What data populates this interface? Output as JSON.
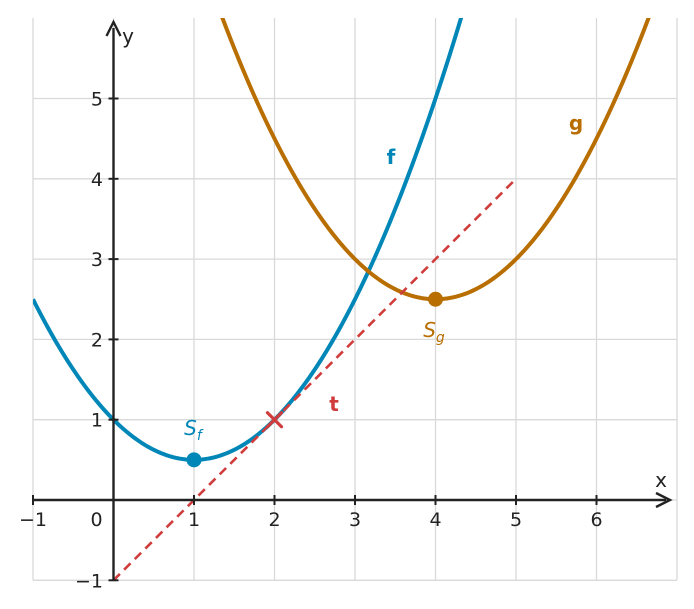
{
  "chart_data": {
    "type": "line",
    "xlabel": "x",
    "ylabel": "y",
    "xlim": [
      -1,
      7
    ],
    "ylim": [
      -1,
      6
    ],
    "grid": true,
    "x_ticks": [
      "−1",
      "0",
      "1",
      "2",
      "3",
      "4",
      "5",
      "6"
    ],
    "y_ticks": [
      "−1",
      "1",
      "2",
      "3",
      "4",
      "5"
    ],
    "colors": {
      "f": "#0087b8",
      "g": "#b86e00",
      "t": "#d03c3c",
      "grid": "#d9d9d9",
      "axis": "#222222"
    },
    "series": [
      {
        "name": "f",
        "kind": "parabola",
        "vertex": [
          1,
          0.5
        ],
        "a": 0.5,
        "x_range": [
          -1,
          7
        ]
      },
      {
        "name": "g",
        "kind": "parabola",
        "vertex": [
          4,
          2.5
        ],
        "a": 0.5,
        "x_range": [
          -1,
          7
        ]
      },
      {
        "name": "t",
        "kind": "line",
        "slope": 1,
        "intercept": -1,
        "x_range": [
          0,
          5
        ],
        "dashed": true
      }
    ],
    "points": [
      {
        "name": "S",
        "sub": "f",
        "x": 1,
        "y": 0.5,
        "marker": "dot",
        "color": "#0087b8"
      },
      {
        "name": "S",
        "sub": "g",
        "x": 4,
        "y": 2.5,
        "marker": "dot",
        "color": "#b86e00"
      },
      {
        "name": "",
        "x": 2,
        "y": 1,
        "marker": "cross",
        "color": "#d03c3c"
      }
    ]
  }
}
